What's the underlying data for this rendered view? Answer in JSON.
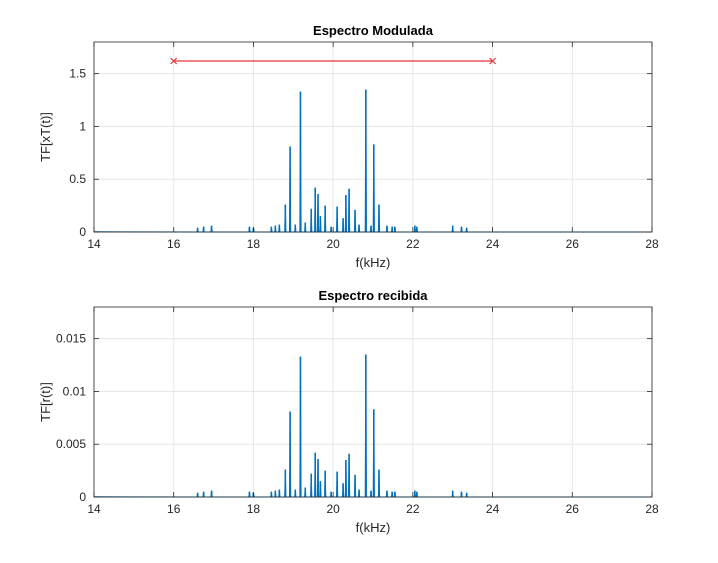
{
  "chart_data": [
    {
      "type": "line",
      "title": "Espectro Modulada",
      "xlabel": "f(kHz)",
      "ylabel": "TF[xT(t)]",
      "xlim": [
        14,
        28
      ],
      "ylim": [
        0,
        1.8
      ],
      "xticks": [
        14,
        16,
        18,
        20,
        22,
        24,
        26,
        28
      ],
      "xtick_labels": [
        "14",
        "16",
        "18",
        "20",
        "22",
        "24",
        "26",
        "28"
      ],
      "yticks": [
        0,
        0.5,
        1,
        1.5
      ],
      "ytick_labels": [
        "0",
        "0.5",
        "1",
        "1.5"
      ],
      "grid": true,
      "series": [
        {
          "color": "#0072BD",
          "style": "spectrum",
          "peaks": [
            [
              16.6,
              0.04
            ],
            [
              16.75,
              0.05
            ],
            [
              16.95,
              0.06
            ],
            [
              17.9,
              0.05
            ],
            [
              18.0,
              0.04
            ],
            [
              18.45,
              0.05
            ],
            [
              18.55,
              0.06
            ],
            [
              18.65,
              0.07
            ],
            [
              18.8,
              0.26
            ],
            [
              18.92,
              0.81
            ],
            [
              19.05,
              0.07
            ],
            [
              19.18,
              1.33
            ],
            [
              19.3,
              0.09
            ],
            [
              19.45,
              0.22
            ],
            [
              19.55,
              0.42
            ],
            [
              19.62,
              0.36
            ],
            [
              19.68,
              0.15
            ],
            [
              19.8,
              0.25
            ],
            [
              19.95,
              0.05
            ],
            [
              20.1,
              0.24
            ],
            [
              20.25,
              0.13
            ],
            [
              20.32,
              0.35
            ],
            [
              20.4,
              0.41
            ],
            [
              20.55,
              0.21
            ],
            [
              20.65,
              0.07
            ],
            [
              20.82,
              1.35
            ],
            [
              20.95,
              0.06
            ],
            [
              21.02,
              0.83
            ],
            [
              21.15,
              0.26
            ],
            [
              21.35,
              0.06
            ],
            [
              21.48,
              0.05
            ],
            [
              21.55,
              0.05
            ],
            [
              22.05,
              0.06
            ],
            [
              22.1,
              0.05
            ],
            [
              23.0,
              0.06
            ],
            [
              23.22,
              0.05
            ],
            [
              23.35,
              0.04
            ]
          ]
        },
        {
          "color": "#E8343A",
          "style": "segment",
          "x": [
            16,
            24
          ],
          "y": [
            1.62,
            1.62
          ],
          "marker": "x"
        }
      ]
    },
    {
      "type": "line",
      "title": "Espectro recibida",
      "xlabel": "f(kHz)",
      "ylabel": "TF[r(t)]",
      "xlim": [
        14,
        28
      ],
      "ylim": [
        0,
        0.018
      ],
      "xticks": [
        14,
        16,
        18,
        20,
        22,
        24,
        26,
        28
      ],
      "xtick_labels": [
        "14",
        "16",
        "18",
        "20",
        "22",
        "24",
        "26",
        "28"
      ],
      "yticks": [
        0,
        0.005,
        0.01,
        0.015
      ],
      "ytick_labels": [
        "0",
        "0.005",
        "0.01",
        "0.015"
      ],
      "grid": true,
      "series": [
        {
          "color": "#0072BD",
          "style": "spectrum",
          "peaks": [
            [
              16.6,
              0.0004
            ],
            [
              16.75,
              0.0005
            ],
            [
              16.95,
              0.0006
            ],
            [
              17.9,
              0.0005
            ],
            [
              18.0,
              0.0004
            ],
            [
              18.45,
              0.0005
            ],
            [
              18.55,
              0.0006
            ],
            [
              18.65,
              0.0007
            ],
            [
              18.8,
              0.0026
            ],
            [
              18.92,
              0.0081
            ],
            [
              19.05,
              0.0007
            ],
            [
              19.18,
              0.0133
            ],
            [
              19.3,
              0.0009
            ],
            [
              19.45,
              0.0022
            ],
            [
              19.55,
              0.0042
            ],
            [
              19.62,
              0.0036
            ],
            [
              19.68,
              0.0015
            ],
            [
              19.8,
              0.0025
            ],
            [
              19.95,
              0.0005
            ],
            [
              20.1,
              0.0024
            ],
            [
              20.25,
              0.0013
            ],
            [
              20.32,
              0.0035
            ],
            [
              20.4,
              0.0041
            ],
            [
              20.55,
              0.0021
            ],
            [
              20.65,
              0.0007
            ],
            [
              20.82,
              0.0135
            ],
            [
              20.95,
              0.0006
            ],
            [
              21.02,
              0.0083
            ],
            [
              21.15,
              0.0026
            ],
            [
              21.35,
              0.0006
            ],
            [
              21.48,
              0.0005
            ],
            [
              21.55,
              0.0005
            ],
            [
              22.05,
              0.0006
            ],
            [
              22.1,
              0.0005
            ],
            [
              23.0,
              0.0006
            ],
            [
              23.22,
              0.0005
            ],
            [
              23.35,
              0.0004
            ]
          ]
        }
      ]
    }
  ]
}
